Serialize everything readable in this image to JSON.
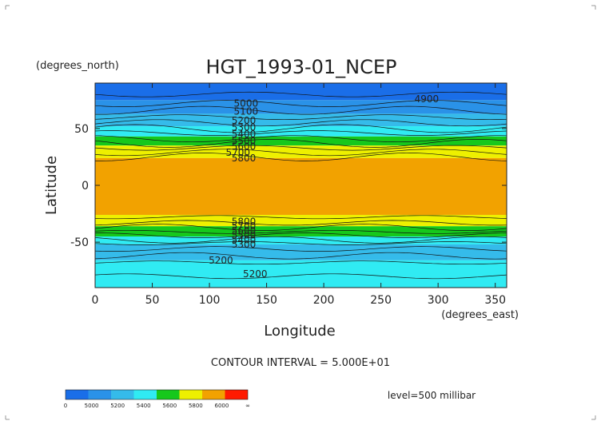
{
  "chart_data": {
    "type": "heatmap",
    "title": "HGT_1993-01_NCEP",
    "ylabel": "Latitude",
    "yunits": "(degrees_north)",
    "xlabel": "Longitude",
    "xunits": "(degrees_east)",
    "xlim": [
      0,
      360
    ],
    "ylim": [
      -90,
      90
    ],
    "xticks": [
      0,
      50,
      100,
      150,
      200,
      250,
      300,
      350
    ],
    "yticks": [
      50,
      0,
      -50
    ],
    "contour_interval_text": "CONTOUR INTERVAL = 5.000E+01",
    "level_text": "level=500 millibar",
    "colorbar": {
      "tick_labels": [
        "0",
        "5000",
        "5200",
        "5400",
        "5600",
        "5800",
        "6000",
        "∞"
      ],
      "colors": [
        "#1a6ee8",
        "#2a92e8",
        "#35bbea",
        "#30ebf3",
        "#16c81c",
        "#eef000",
        "#f2a200",
        "#ff1a00"
      ]
    },
    "zonal_bands": [
      {
        "lat_from": 90,
        "lat_to": 75,
        "band": 0
      },
      {
        "lat_from": 75,
        "lat_to": 63,
        "band": 1
      },
      {
        "lat_from": 63,
        "lat_to": 52,
        "band": 2
      },
      {
        "lat_from": 52,
        "lat_to": 43,
        "band": 3
      },
      {
        "lat_from": 43,
        "lat_to": 35,
        "band": 4
      },
      {
        "lat_from": 35,
        "lat_to": 24,
        "band": 5
      },
      {
        "lat_from": 24,
        "lat_to": -26,
        "band": 6
      },
      {
        "lat_from": -26,
        "lat_to": -36,
        "band": 5
      },
      {
        "lat_from": -36,
        "lat_to": -45,
        "band": 4
      },
      {
        "lat_from": -45,
        "lat_to": -52,
        "band": 3
      },
      {
        "lat_from": -52,
        "lat_to": -66,
        "band": 2
      },
      {
        "lat_from": -66,
        "lat_to": -90,
        "band": 3
      }
    ],
    "contour_labels": [
      {
        "text": "4900",
        "lon": 290,
        "lat": 76
      },
      {
        "text": "5000",
        "lon": 132,
        "lat": 72
      },
      {
        "text": "5100",
        "lon": 132,
        "lat": 65
      },
      {
        "text": "5200",
        "lon": 130,
        "lat": 57
      },
      {
        "text": "5300",
        "lon": 130,
        "lat": 51
      },
      {
        "text": "5400",
        "lon": 130,
        "lat": 45
      },
      {
        "text": "5500",
        "lon": 130,
        "lat": 39
      },
      {
        "text": "5600",
        "lon": 130,
        "lat": 34
      },
      {
        "text": "5700",
        "lon": 125,
        "lat": 29
      },
      {
        "text": "5800",
        "lon": 130,
        "lat": 24
      },
      {
        "text": "5800",
        "lon": 130,
        "lat": -32
      },
      {
        "text": "5700",
        "lon": 130,
        "lat": -36
      },
      {
        "text": "5600",
        "lon": 130,
        "lat": -40
      },
      {
        "text": "5500",
        "lon": 130,
        "lat": -44
      },
      {
        "text": "5400",
        "lon": 130,
        "lat": -48
      },
      {
        "text": "5300",
        "lon": 130,
        "lat": -52
      },
      {
        "text": "5200",
        "lon": 110,
        "lat": -66
      },
      {
        "text": "5200",
        "lon": 140,
        "lat": -78
      }
    ],
    "grid": false
  }
}
